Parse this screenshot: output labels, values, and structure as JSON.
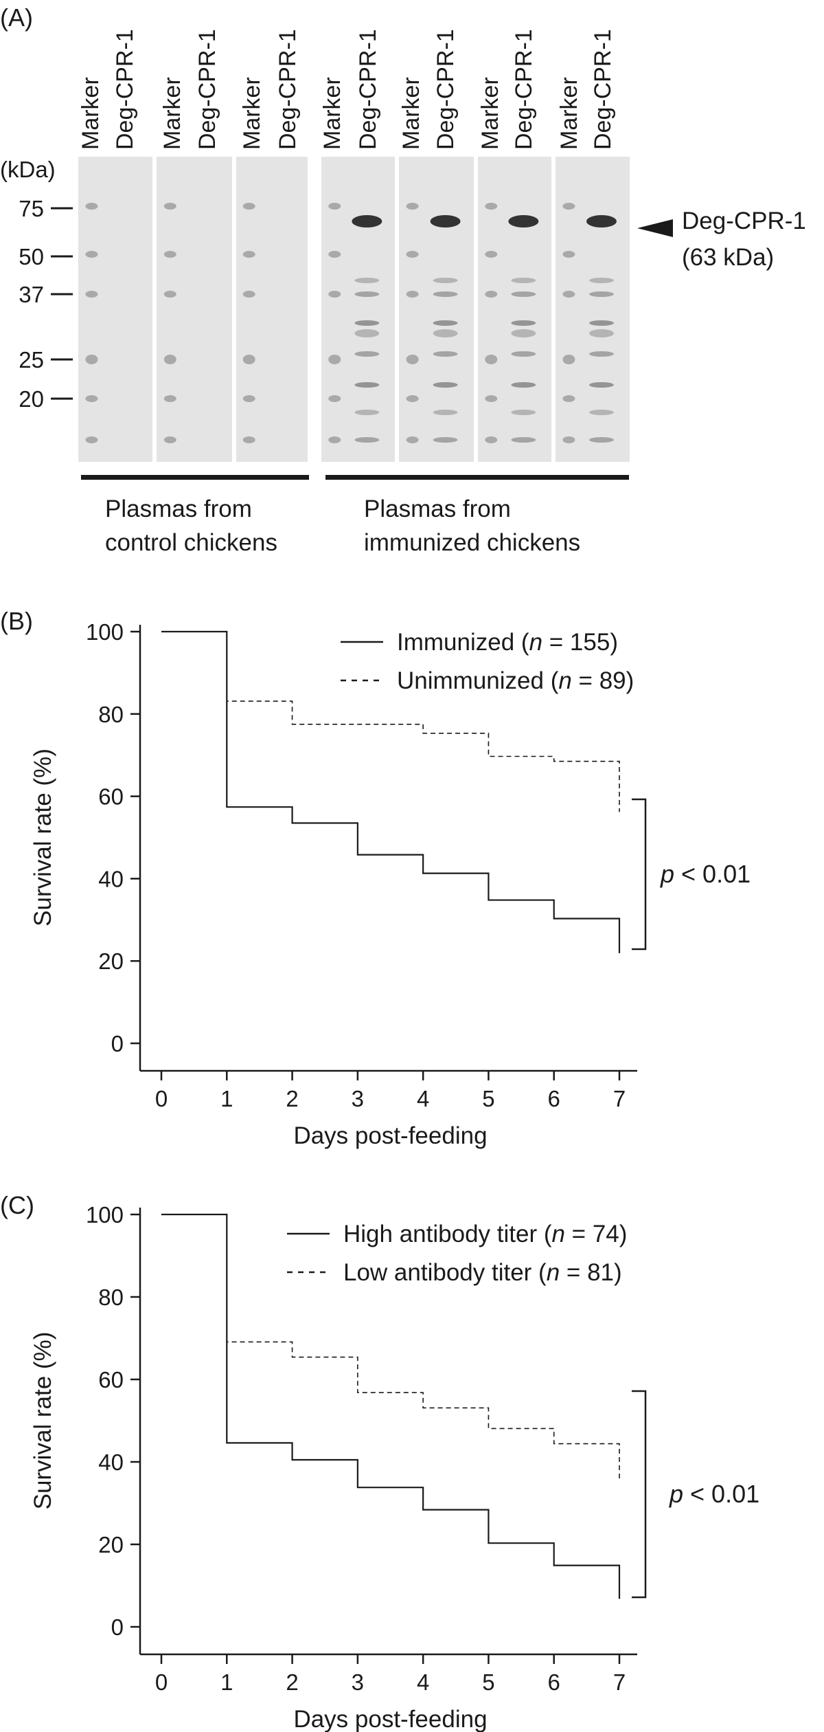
{
  "panel_a": {
    "label": "(A)",
    "kda_label": "(kDa)",
    "lane_labels": [
      "Marker",
      "Deg-CPR-1",
      "Marker",
      "Deg-CPR-1",
      "Marker",
      "Deg-CPR-1",
      "Marker",
      "Deg-CPR-1",
      "Marker",
      "Deg-CPR-1",
      "Marker",
      "Deg-CPR-1",
      "Marker",
      "Deg-CPR-1"
    ],
    "mw_ticks": [
      "75",
      "50",
      "37",
      "25",
      "20"
    ],
    "mw_values": [
      75,
      50,
      37,
      25,
      20
    ],
    "arrow_label_line1": "Deg-CPR-1",
    "arrow_label_line2": "(63 kDa)",
    "group_control_line1": "Plasmas from",
    "group_control_line2": "control chickens",
    "group_immunized_line1": "Plasmas from",
    "group_immunized_line2": "immunized chickens"
  },
  "chart_data": [
    {
      "type": "line",
      "step": true,
      "panel_label": "(B)",
      "title": "",
      "xlabel": "Days post-feeding",
      "ylabel": "Survival rate (%)",
      "xlim": [
        0,
        7
      ],
      "ylim": [
        0,
        100
      ],
      "x_ticks": [
        0,
        1,
        2,
        3,
        4,
        5,
        6,
        7
      ],
      "y_ticks": [
        0,
        20,
        40,
        60,
        80,
        100
      ],
      "legend_position": "top-right",
      "series": [
        {
          "name_main": "Immunized (",
          "name_n": "n",
          "name_rest": " = 155)",
          "style": "solid",
          "x": [
            0,
            1,
            2,
            3,
            4,
            5,
            6,
            7
          ],
          "y": [
            100,
            57.4,
            53.5,
            45.8,
            41.3,
            34.8,
            30.3,
            21.9
          ]
        },
        {
          "name_main": "Unimmunized (",
          "name_n": "n",
          "name_rest": " = 89)",
          "style": "dashed",
          "x": [
            0,
            1,
            2,
            3,
            4,
            5,
            6,
            7
          ],
          "y": [
            100,
            83.1,
            77.5,
            77.5,
            75.3,
            69.7,
            68.5,
            56.2
          ]
        }
      ],
      "annotation_p": "p",
      "annotation_rest": " < 0.01"
    },
    {
      "type": "line",
      "step": true,
      "panel_label": "(C)",
      "title": "",
      "xlabel": "Days post-feeding",
      "ylabel": "Survival rate (%)",
      "xlim": [
        0,
        7
      ],
      "ylim": [
        0,
        100
      ],
      "x_ticks": [
        0,
        1,
        2,
        3,
        4,
        5,
        6,
        7
      ],
      "y_ticks": [
        0,
        20,
        40,
        60,
        80,
        100
      ],
      "legend_position": "top-right",
      "series": [
        {
          "name_main": "High antibody titer (",
          "name_n": "n",
          "name_rest": " = 74)",
          "style": "solid",
          "x": [
            0,
            1,
            2,
            3,
            4,
            5,
            6,
            7
          ],
          "y": [
            100,
            44.6,
            40.5,
            33.8,
            28.4,
            20.3,
            14.9,
            6.8
          ]
        },
        {
          "name_main": "Low antibody titer (",
          "name_n": "n",
          "name_rest": " = 81)",
          "style": "dashed",
          "x": [
            0,
            1,
            2,
            3,
            4,
            5,
            6,
            7
          ],
          "y": [
            100,
            69.1,
            65.4,
            56.8,
            53.1,
            48.1,
            44.4,
            35.8
          ]
        }
      ],
      "annotation_p": "p",
      "annotation_rest": " < 0.01"
    }
  ]
}
